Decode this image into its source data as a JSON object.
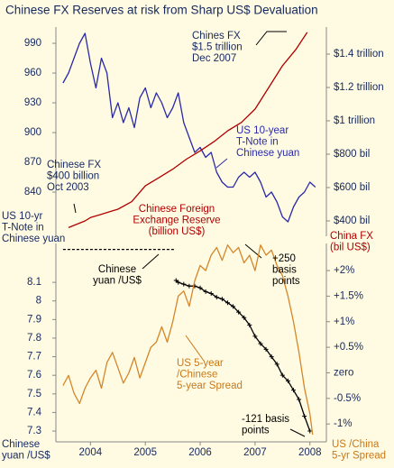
{
  "chart_data": [
    {
      "type": "line",
      "title": "Chinese FX Reserves at risk from Sharp US$ Devaluation",
      "ylabel": {
        "lines": [
          "US 10-yr",
          "T-Note in",
          "Chinese yuan"
        ],
        "color": "#15285e"
      },
      "y2label": {
        "lines": [
          "China FX",
          "(bil US$)"
        ],
        "color": "#b00000"
      },
      "xlim": [
        2003.37,
        2008.3
      ],
      "ylim": [
        795.5,
        1006.4
      ],
      "yticks": [
        840,
        870,
        900,
        930,
        960,
        990
      ],
      "y2lim": [
        308,
        1562
      ],
      "y2ticks": [
        {
          "value": 400,
          "label": "$400 bil"
        },
        {
          "value": 600,
          "label": "$600 bil"
        },
        {
          "value": 800,
          "label": "$800 bil"
        },
        {
          "value": 1000,
          "label": "$1 trillion"
        },
        {
          "value": 1200,
          "label": "$1.2 trillion"
        },
        {
          "value": 1400,
          "label": "$1.4 trillion"
        }
      ],
      "series": [
        {
          "color": "#2a2aa8",
          "x": [
            2003.5,
            2003.6,
            2003.7,
            2003.8,
            2003.9,
            2004.0,
            2004.1,
            2004.2,
            2004.3,
            2004.4,
            2004.5,
            2004.6,
            2004.7,
            2004.8,
            2004.9,
            2005.0,
            2005.1,
            2005.2,
            2005.3,
            2005.4,
            2005.5,
            2005.6,
            2005.7,
            2005.8,
            2005.9,
            2006.0,
            2006.1,
            2006.2,
            2006.3,
            2006.4,
            2006.5,
            2006.6,
            2006.7,
            2006.8,
            2006.9,
            2007.0,
            2007.1,
            2007.2,
            2007.3,
            2007.4,
            2007.5,
            2007.6,
            2007.7,
            2007.8,
            2007.9,
            2008.0,
            2008.1
          ],
          "values": [
            950,
            960,
            975,
            990,
            1000,
            970,
            945,
            975,
            960,
            915,
            930,
            910,
            925,
            905,
            935,
            945,
            925,
            940,
            930,
            915,
            925,
            940,
            910,
            895,
            880,
            885,
            875,
            880,
            860,
            850,
            845,
            845,
            855,
            860,
            855,
            860,
            850,
            835,
            840,
            830,
            815,
            810,
            825,
            835,
            840,
            850,
            845
          ]
        },
        {
          "color": "#b00000",
          "axis": "y2",
          "x": [
            2003.6,
            2003.9,
            2004.0,
            2004.2,
            2004.5,
            2004.75,
            2005.0,
            2005.25,
            2005.5,
            2005.75,
            2006.0,
            2006.25,
            2006.5,
            2006.75,
            2007.0,
            2007.25,
            2007.5,
            2007.75,
            2007.95
          ],
          "values": [
            360,
            400,
            420,
            440,
            470,
            515,
            610,
            660,
            710,
            770,
            820,
            875,
            940,
            990,
            1070,
            1200,
            1330,
            1430,
            1530
          ]
        }
      ],
      "annotations": [
        {
          "lines": [
            "Chines FX",
            "$1.5 trillion",
            "Dec 2007"
          ],
          "color": "#15285e"
        },
        {
          "lines": [
            "US 10-year",
            "T-Note in",
            "Chinese yuan"
          ],
          "color": "#2a2aa8"
        },
        {
          "lines": [
            "Chinese FX",
            "$400 billion",
            "Oct 2003"
          ],
          "color": "#15285e"
        },
        {
          "lines": [
            "Chinese Foreign",
            "Exchange Reserve",
            "(billion US$)"
          ],
          "color": "#b00000"
        }
      ]
    },
    {
      "type": "line",
      "ylabel": {
        "lines": [
          "Chinese",
          "yuan /US$"
        ],
        "color": "#15285e"
      },
      "y2label": {
        "lines": [
          "US /China",
          "5-yr Spread"
        ],
        "color": "#c8781a"
      },
      "xlim": [
        2003.37,
        2008.3
      ],
      "xticks": [
        2004,
        2005,
        2006,
        2007,
        2008
      ],
      "ylim": [
        7.242,
        8.309
      ],
      "yticks": [
        7.3,
        7.4,
        7.5,
        7.6,
        7.7,
        7.8,
        7.9,
        8,
        8.1
      ],
      "y2lim": [
        -1.35,
        2.53
      ],
      "y2ticks": [
        {
          "value": -1,
          "label": "-1%"
        },
        {
          "value": -0.5,
          "label": "-0.5%"
        },
        {
          "value": 0,
          "label": "zero"
        },
        {
          "value": 0.5,
          "label": "+0.5%"
        },
        {
          "value": 1,
          "label": "+1%"
        },
        {
          "value": 1.5,
          "label": "+1.5%"
        },
        {
          "value": 2,
          "label": "+2%"
        }
      ],
      "series": [
        {
          "color": "#000000",
          "dashed": true,
          "x": [
            2003.5,
            2005.55
          ],
          "values": [
            8.277,
            8.277
          ]
        },
        {
          "color": "#000000",
          "markers": true,
          "x": [
            2005.56,
            2005.6,
            2005.7,
            2005.8,
            2005.9,
            2006.0,
            2006.1,
            2006.2,
            2006.3,
            2006.4,
            2006.5,
            2006.6,
            2006.7,
            2006.8,
            2006.9,
            2007.0,
            2007.1,
            2007.2,
            2007.3,
            2007.4,
            2007.5,
            2007.6,
            2007.7,
            2007.8,
            2007.9,
            2008.0
          ],
          "values": [
            8.11,
            8.1,
            8.09,
            8.08,
            8.08,
            8.07,
            8.05,
            8.04,
            8.02,
            8.01,
            7.99,
            7.97,
            7.94,
            7.91,
            7.87,
            7.81,
            7.77,
            7.74,
            7.7,
            7.66,
            7.6,
            7.57,
            7.52,
            7.47,
            7.38,
            7.3
          ]
        },
        {
          "color": "#d4862a",
          "axis": "y2",
          "x": [
            2003.5,
            2003.6,
            2003.7,
            2003.8,
            2003.9,
            2004.0,
            2004.1,
            2004.2,
            2004.3,
            2004.4,
            2004.5,
            2004.6,
            2004.7,
            2004.8,
            2004.9,
            2005.0,
            2005.1,
            2005.2,
            2005.3,
            2005.4,
            2005.5,
            2005.6,
            2005.7,
            2005.8,
            2005.9,
            2006.0,
            2006.1,
            2006.2,
            2006.3,
            2006.4,
            2006.5,
            2006.6,
            2006.7,
            2006.8,
            2006.9,
            2007.0,
            2007.1,
            2007.2,
            2007.3,
            2007.4,
            2007.5,
            2007.6,
            2007.7,
            2007.8,
            2007.9,
            2008.0,
            2008.05
          ],
          "values": [
            -0.25,
            -0.05,
            -0.4,
            -0.6,
            -0.3,
            -0.1,
            0.05,
            -0.3,
            0.2,
            0.4,
            0.1,
            -0.2,
            0.0,
            0.3,
            -0.1,
            0.2,
            0.5,
            0.6,
            0.9,
            0.6,
            1.0,
            1.5,
            1.6,
            1.3,
            1.8,
            2.1,
            2.0,
            2.3,
            2.45,
            2.2,
            2.5,
            2.35,
            2.45,
            2.15,
            2.3,
            2.0,
            2.5,
            2.3,
            2.4,
            2.1,
            1.9,
            1.5,
            1.0,
            0.4,
            -0.3,
            -0.8,
            -1.21
          ]
        }
      ],
      "annotations": [
        {
          "lines": [
            "Chinese",
            "yuan /US$"
          ],
          "color": "#000000"
        },
        {
          "lines": [
            "+250",
            "basis",
            "points"
          ],
          "color": "#000000"
        },
        {
          "lines": [
            "US 5-year",
            "/Chinese",
            "5-year Spread"
          ],
          "color": "#c8781a"
        },
        {
          "lines": [
            "-121 basis",
            "points"
          ],
          "color": "#000000"
        }
      ]
    }
  ]
}
